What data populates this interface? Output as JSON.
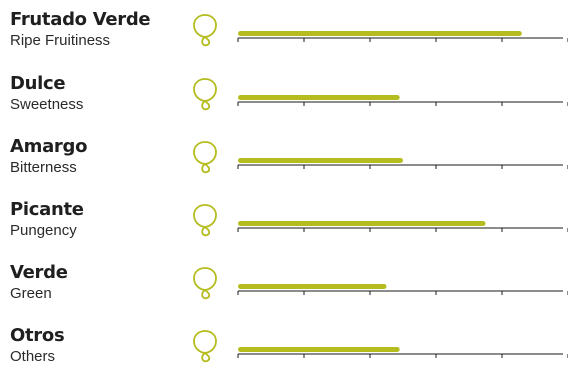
{
  "colors": {
    "bar": "#b5bd1e",
    "axis": "#1a1a1a",
    "icon": "#b5bd1e"
  },
  "chart_data": {
    "type": "bar",
    "orientation": "horizontal",
    "xlim": [
      0,
      5
    ],
    "tick_interval": 1,
    "grid": false,
    "icon": "olive-drop-icon",
    "categories": [
      {
        "label": "Frutado Verde",
        "sublabel": "Ripe Fruitiness",
        "value": 4.3
      },
      {
        "label": "Dulce",
        "sublabel": "Sweetness",
        "value": 2.45
      },
      {
        "label": "Amargo",
        "sublabel": "Bitterness",
        "value": 2.5
      },
      {
        "label": "Picante",
        "sublabel": "Pungency",
        "value": 3.75
      },
      {
        "label": "Verde",
        "sublabel": "Green",
        "value": 2.25
      },
      {
        "label": "Otros",
        "sublabel": "Others",
        "value": 2.45
      }
    ]
  }
}
